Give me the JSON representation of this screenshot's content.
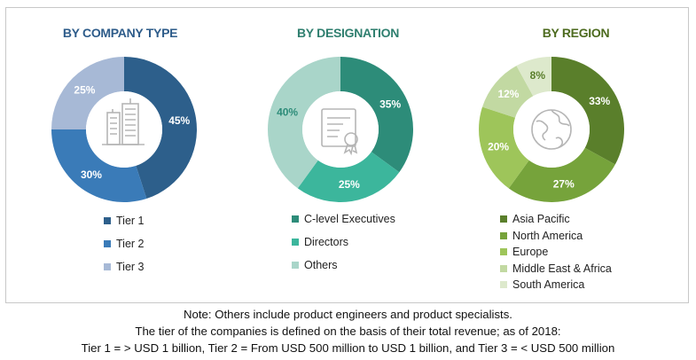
{
  "colors": {
    "company_title": "#2e5c8a",
    "designation_title": "#2f7f6f",
    "region_title": "#4d6b1f"
  },
  "chart_data": [
    {
      "type": "pie",
      "title": "BY COMPANY TYPE",
      "center_icon": "building-icon",
      "categories": [
        "Tier 1",
        "Tier 2",
        "Tier 3"
      ],
      "values": [
        45,
        30,
        25
      ],
      "labels": [
        "45%",
        "30%",
        "25%"
      ],
      "colors": [
        "#2d5f8b",
        "#3a7bb8",
        "#a7b9d6"
      ],
      "label_colors": [
        "#ffffff",
        "#ffffff",
        "#ffffff"
      ],
      "legend": "bottom"
    },
    {
      "type": "pie",
      "title": "BY DESIGNATION",
      "center_icon": "certificate-icon",
      "categories": [
        "C-level Executives",
        "Directors",
        "Others"
      ],
      "values": [
        35,
        25,
        40
      ],
      "labels": [
        "35%",
        "25%",
        "40%"
      ],
      "colors": [
        "#2d8c79",
        "#3cb69c",
        "#a9d5c9"
      ],
      "label_colors": [
        "#ffffff",
        "#ffffff",
        "#2d8c79"
      ],
      "legend": "bottom"
    },
    {
      "type": "pie",
      "title": "BY REGION",
      "center_icon": "globe-icon",
      "categories": [
        "Asia Pacific",
        "North America",
        "Europe",
        "Middle East & Africa",
        "South America"
      ],
      "values": [
        33,
        27,
        20,
        12,
        8
      ],
      "labels": [
        "33%",
        "27%",
        "20%",
        "12%",
        "8%"
      ],
      "colors": [
        "#5a7f2b",
        "#76a33b",
        "#9ec55a",
        "#c2d9a2",
        "#dde9cc"
      ],
      "label_colors": [
        "#ffffff",
        "#ffffff",
        "#ffffff",
        "#ffffff",
        "#5a7f2b"
      ],
      "legend": "bottom"
    }
  ],
  "note": {
    "line1": "Note: Others include product engineers and product specialists.",
    "line2": "The tier of the companies is defined on the basis of their total revenue; as of 2018:",
    "line3": "Tier 1 = > USD 1 billion, Tier 2 = From USD 500 million to USD 1 billion, and Tier 3 = < USD 500 million"
  }
}
